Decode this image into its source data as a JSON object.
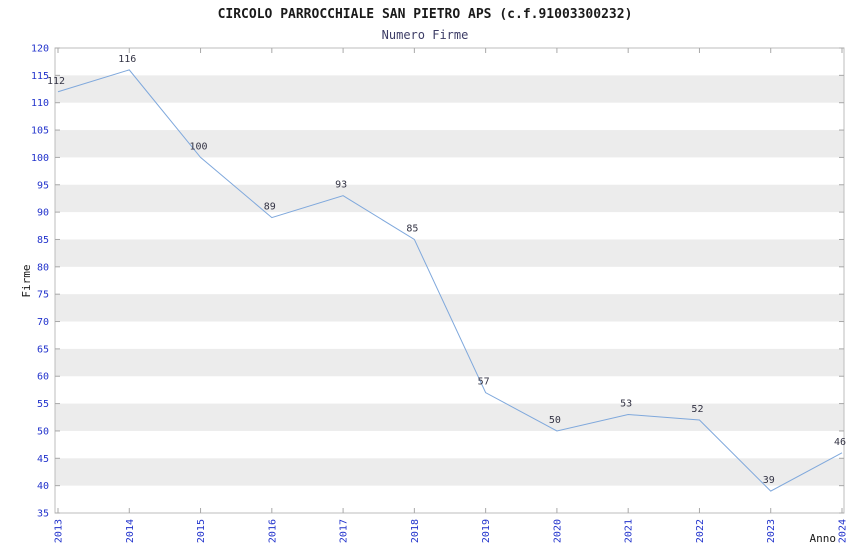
{
  "chart_data": {
    "type": "line",
    "title": "CIRCOLO PARROCCHIALE SAN PIETRO APS (c.f.91003300232)",
    "subtitle": "Numero Firme",
    "xlabel": "Anno",
    "ylabel": "Firme",
    "x": [
      2013,
      2014,
      2015,
      2016,
      2017,
      2018,
      2019,
      2020,
      2021,
      2022,
      2023,
      2024
    ],
    "values": [
      112,
      116,
      100,
      89,
      93,
      85,
      57,
      50,
      53,
      52,
      39,
      46
    ],
    "ylim": [
      35,
      120
    ],
    "ytick_step": 5,
    "grid": "horizontal-alternating-bands",
    "legend": "none",
    "colors": {
      "line": "#7fa8dc",
      "tick_label": "#2233cc",
      "data_label": "#333344",
      "band": "#ececec",
      "axis_border": "#bcbcbc",
      "tick_mark": "#a8a8a8",
      "title": "#1a1a1a",
      "subtitle": "#3c3c66",
      "background": "#ffffff"
    }
  }
}
